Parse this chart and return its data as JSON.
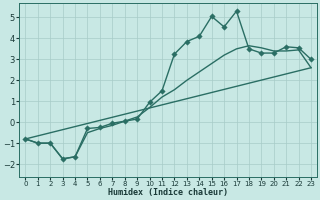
{
  "xlabel": "Humidex (Indice chaleur)",
  "bg_color": "#c8e8e4",
  "grid_color": "#a8ccc8",
  "line_color": "#2a6e64",
  "xlim": [
    -0.5,
    23.5
  ],
  "ylim": [
    -2.6,
    5.7
  ],
  "xticks": [
    0,
    1,
    2,
    3,
    4,
    5,
    6,
    7,
    8,
    9,
    10,
    11,
    12,
    13,
    14,
    15,
    16,
    17,
    18,
    19,
    20,
    21,
    22,
    23
  ],
  "yticks": [
    -2,
    -1,
    0,
    1,
    2,
    3,
    4,
    5
  ],
  "line1_x": [
    0,
    1,
    2,
    3,
    4,
    5,
    6,
    7,
    8,
    9,
    10,
    11,
    12,
    13,
    14,
    15,
    16,
    17,
    18,
    19,
    20,
    21,
    22,
    23
  ],
  "line1_y": [
    -0.8,
    -1.0,
    -1.0,
    -1.75,
    -1.65,
    -0.3,
    -0.25,
    -0.05,
    0.05,
    0.15,
    0.95,
    1.5,
    3.25,
    3.85,
    4.1,
    5.05,
    4.55,
    5.3,
    3.5,
    3.3,
    3.3,
    3.6,
    3.55,
    3.0
  ],
  "line2_x": [
    0,
    1,
    2,
    3,
    4,
    5,
    6,
    7,
    8,
    9,
    10,
    11,
    12,
    13,
    14,
    15,
    16,
    17,
    18,
    19,
    20,
    21,
    22,
    23
  ],
  "line2_y": [
    -0.8,
    -1.0,
    -1.0,
    -1.75,
    -1.65,
    -0.5,
    -0.3,
    -0.15,
    0.05,
    0.25,
    0.7,
    1.2,
    1.55,
    2.0,
    2.4,
    2.8,
    3.2,
    3.5,
    3.65,
    3.55,
    3.4,
    3.4,
    3.45,
    2.6
  ],
  "line3_x": [
    0,
    23
  ],
  "line3_y": [
    -0.8,
    2.6
  ],
  "markersize": 2.8,
  "linewidth": 1.0
}
